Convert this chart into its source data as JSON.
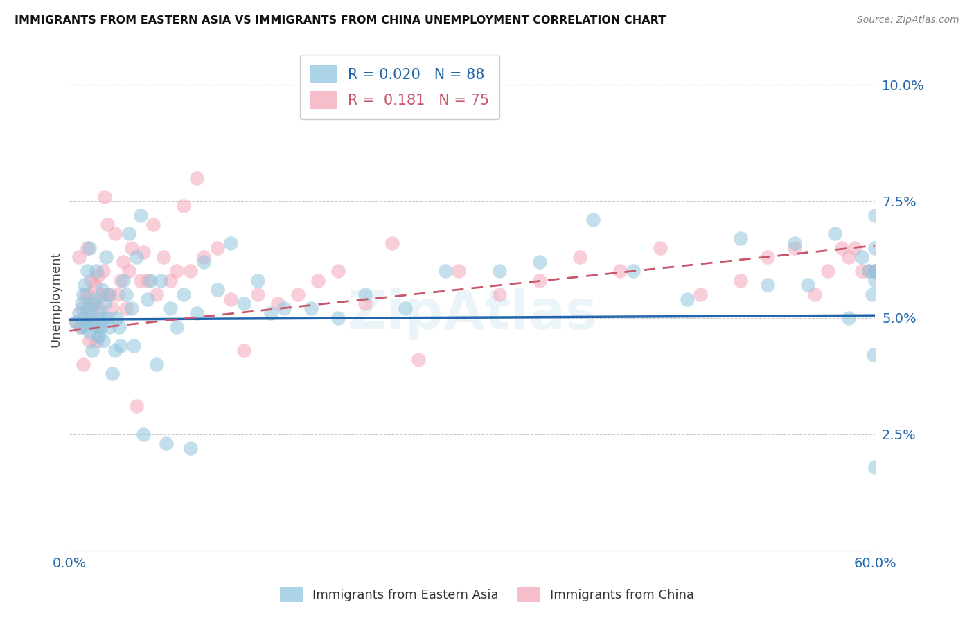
{
  "title": "IMMIGRANTS FROM EASTERN ASIA VS IMMIGRANTS FROM CHINA UNEMPLOYMENT CORRELATION CHART",
  "source": "Source: ZipAtlas.com",
  "ylabel": "Unemployment",
  "xlim": [
    0.0,
    0.6
  ],
  "ylim": [
    0.0,
    0.108
  ],
  "color_blue": "#92c5de",
  "color_pink": "#f4a7b9",
  "color_blue_dark": "#2166ac",
  "color_pink_dark": "#c9556a",
  "color_axis_label": "#2166ac",
  "background_color": "#ffffff",
  "grid_color": "#cccccc",
  "trend_blue_y0": 0.0496,
  "trend_blue_y1": 0.0505,
  "trend_pink_y0": 0.0472,
  "trend_pink_y1": 0.0655,
  "scatter_blue_x": [
    0.005,
    0.007,
    0.008,
    0.009,
    0.01,
    0.01,
    0.011,
    0.012,
    0.013,
    0.013,
    0.014,
    0.015,
    0.015,
    0.016,
    0.017,
    0.017,
    0.018,
    0.019,
    0.02,
    0.02,
    0.021,
    0.022,
    0.022,
    0.023,
    0.024,
    0.025,
    0.025,
    0.026,
    0.027,
    0.028,
    0.029,
    0.03,
    0.032,
    0.034,
    0.035,
    0.037,
    0.038,
    0.04,
    0.042,
    0.044,
    0.046,
    0.048,
    0.05,
    0.053,
    0.055,
    0.058,
    0.06,
    0.065,
    0.068,
    0.072,
    0.075,
    0.08,
    0.085,
    0.09,
    0.095,
    0.1,
    0.11,
    0.12,
    0.13,
    0.14,
    0.15,
    0.16,
    0.18,
    0.2,
    0.22,
    0.25,
    0.28,
    0.32,
    0.35,
    0.39,
    0.42,
    0.46,
    0.5,
    0.52,
    0.54,
    0.55,
    0.57,
    0.58,
    0.59,
    0.595,
    0.598,
    0.599,
    0.6,
    0.6,
    0.6,
    0.6,
    0.6,
    0.6
  ],
  "scatter_blue_y": [
    0.049,
    0.051,
    0.048,
    0.053,
    0.05,
    0.055,
    0.057,
    0.048,
    0.052,
    0.06,
    0.049,
    0.047,
    0.065,
    0.051,
    0.043,
    0.053,
    0.049,
    0.054,
    0.06,
    0.048,
    0.046,
    0.051,
    0.046,
    0.048,
    0.056,
    0.045,
    0.05,
    0.053,
    0.063,
    0.05,
    0.055,
    0.048,
    0.038,
    0.043,
    0.05,
    0.048,
    0.044,
    0.058,
    0.055,
    0.068,
    0.052,
    0.044,
    0.063,
    0.072,
    0.025,
    0.054,
    0.058,
    0.04,
    0.058,
    0.023,
    0.052,
    0.048,
    0.055,
    0.022,
    0.051,
    0.062,
    0.056,
    0.066,
    0.053,
    0.058,
    0.051,
    0.052,
    0.052,
    0.05,
    0.055,
    0.052,
    0.06,
    0.06,
    0.062,
    0.071,
    0.06,
    0.054,
    0.067,
    0.057,
    0.066,
    0.057,
    0.068,
    0.05,
    0.063,
    0.06,
    0.055,
    0.042,
    0.058,
    0.072,
    0.065,
    0.06,
    0.018,
    0.06
  ],
  "scatter_pink_x": [
    0.005,
    0.007,
    0.008,
    0.009,
    0.01,
    0.011,
    0.012,
    0.013,
    0.014,
    0.015,
    0.015,
    0.016,
    0.017,
    0.018,
    0.019,
    0.02,
    0.021,
    0.022,
    0.023,
    0.024,
    0.025,
    0.026,
    0.027,
    0.028,
    0.03,
    0.032,
    0.034,
    0.036,
    0.038,
    0.04,
    0.042,
    0.044,
    0.046,
    0.05,
    0.053,
    0.055,
    0.058,
    0.062,
    0.065,
    0.07,
    0.075,
    0.08,
    0.085,
    0.09,
    0.095,
    0.1,
    0.11,
    0.12,
    0.13,
    0.14,
    0.155,
    0.17,
    0.185,
    0.2,
    0.22,
    0.24,
    0.26,
    0.29,
    0.32,
    0.35,
    0.38,
    0.41,
    0.44,
    0.47,
    0.5,
    0.52,
    0.54,
    0.555,
    0.565,
    0.575,
    0.58,
    0.585,
    0.59,
    0.595,
    0.6
  ],
  "scatter_pink_y": [
    0.049,
    0.063,
    0.048,
    0.052,
    0.04,
    0.05,
    0.055,
    0.065,
    0.055,
    0.045,
    0.052,
    0.058,
    0.049,
    0.053,
    0.057,
    0.045,
    0.059,
    0.052,
    0.048,
    0.055,
    0.06,
    0.076,
    0.055,
    0.07,
    0.055,
    0.052,
    0.068,
    0.055,
    0.058,
    0.062,
    0.052,
    0.06,
    0.065,
    0.031,
    0.058,
    0.064,
    0.058,
    0.07,
    0.055,
    0.063,
    0.058,
    0.06,
    0.074,
    0.06,
    0.08,
    0.063,
    0.065,
    0.054,
    0.043,
    0.055,
    0.053,
    0.055,
    0.058,
    0.06,
    0.053,
    0.066,
    0.041,
    0.06,
    0.055,
    0.058,
    0.063,
    0.06,
    0.065,
    0.055,
    0.058,
    0.063,
    0.065,
    0.055,
    0.06,
    0.065,
    0.063,
    0.065,
    0.06,
    0.06,
    0.06
  ]
}
